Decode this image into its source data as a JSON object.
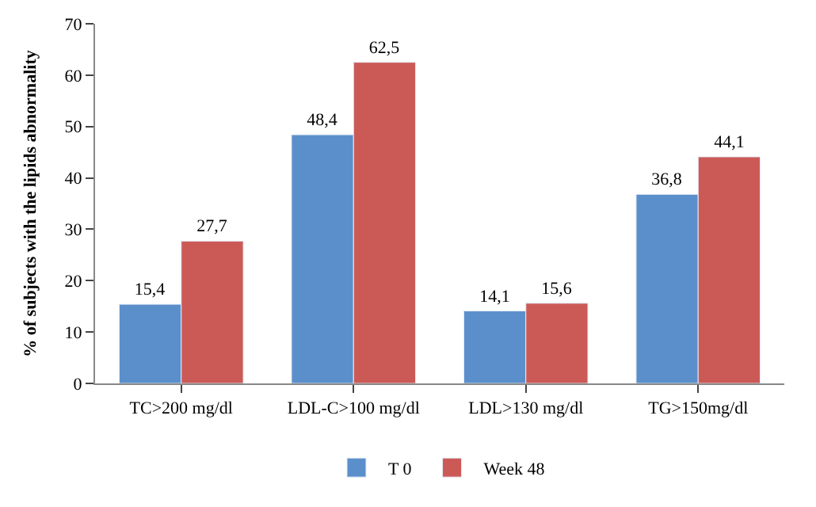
{
  "chart_data": {
    "type": "bar",
    "ylabel": "% of subjects with the lipids abnormality",
    "categories": [
      "TC>200 mg/dl",
      "LDL-C>100 mg/dl",
      "LDL>130 mg/dl",
      "TG>150mg/dl"
    ],
    "series": [
      {
        "name": "T 0",
        "color": "#5b8fcb",
        "values": [
          15.4,
          48.4,
          14.1,
          36.8
        ],
        "value_labels": [
          "15,4",
          "48,4",
          "14,1",
          "36,8"
        ]
      },
      {
        "name": "Week 48",
        "color": "#cb5a57",
        "values": [
          27.7,
          62.5,
          15.6,
          44.1
        ],
        "value_labels": [
          "27,7",
          "62,5",
          "15,6",
          "44,1"
        ]
      }
    ],
    "ylim": [
      0,
      70
    ],
    "yticks": [
      0,
      10,
      20,
      30,
      40,
      50,
      60,
      70
    ],
    "legend": "bottom"
  }
}
